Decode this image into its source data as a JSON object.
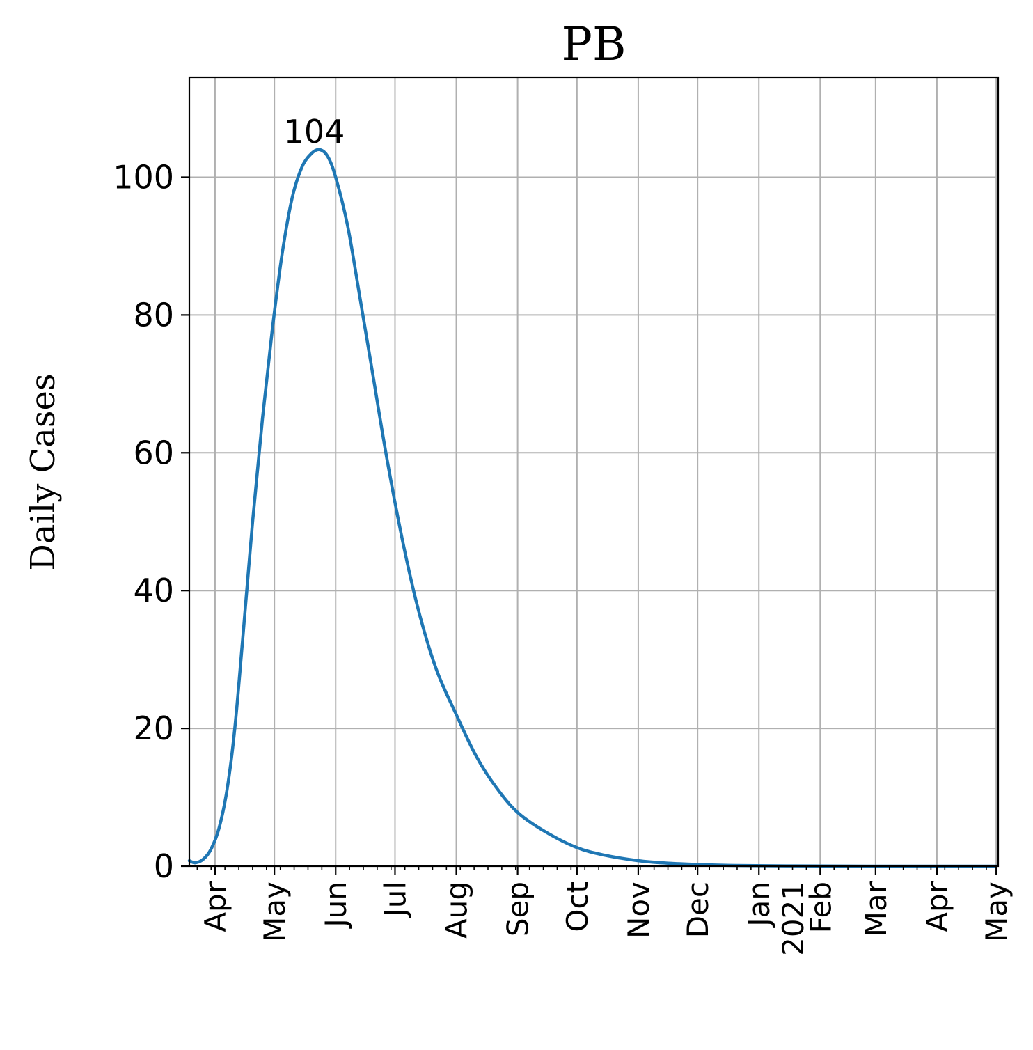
{
  "chart_data": {
    "type": "line",
    "title": "PB",
    "xlabel": "",
    "ylabel": "Daily Cases",
    "ylim": [
      0,
      114.5
    ],
    "xlim": [
      "2020-03-19",
      "2021-05-02"
    ],
    "grid": true,
    "x_ticks": [
      {
        "date": "2020-04-01",
        "label": "Apr"
      },
      {
        "date": "2020-05-01",
        "label": "May"
      },
      {
        "date": "2020-06-01",
        "label": "Jun"
      },
      {
        "date": "2020-07-01",
        "label": "Jul"
      },
      {
        "date": "2020-08-01",
        "label": "Aug"
      },
      {
        "date": "2020-09-01",
        "label": "Sep"
      },
      {
        "date": "2020-10-01",
        "label": "Oct"
      },
      {
        "date": "2020-11-01",
        "label": "Nov"
      },
      {
        "date": "2020-12-01",
        "label": "Dec"
      },
      {
        "date": "2021-01-01",
        "label": "Jan\n2021"
      },
      {
        "date": "2021-02-01",
        "label": "Feb"
      },
      {
        "date": "2021-03-01",
        "label": "Mar"
      },
      {
        "date": "2021-04-01",
        "label": "Apr"
      },
      {
        "date": "2021-05-01",
        "label": "May"
      }
    ],
    "y_ticks": [
      0,
      20,
      40,
      60,
      80,
      100
    ],
    "series": [
      {
        "color": "#1f77b4",
        "points": [
          {
            "x": "2020-03-19",
            "y": 0.8
          },
          {
            "x": "2020-03-22",
            "y": 0.5
          },
          {
            "x": "2020-03-26",
            "y": 1.0
          },
          {
            "x": "2020-03-30",
            "y": 2.5
          },
          {
            "x": "2020-04-03",
            "y": 5.5
          },
          {
            "x": "2020-04-07",
            "y": 11.0
          },
          {
            "x": "2020-04-11",
            "y": 20.0
          },
          {
            "x": "2020-04-15",
            "y": 33.0
          },
          {
            "x": "2020-04-20",
            "y": 50.0
          },
          {
            "x": "2020-04-25",
            "y": 65.0
          },
          {
            "x": "2020-04-30",
            "y": 78.0
          },
          {
            "x": "2020-05-05",
            "y": 89.0
          },
          {
            "x": "2020-05-10",
            "y": 97.0
          },
          {
            "x": "2020-05-15",
            "y": 101.5
          },
          {
            "x": "2020-05-20",
            "y": 103.5
          },
          {
            "x": "2020-05-24",
            "y": 104.0
          },
          {
            "x": "2020-05-28",
            "y": 103.0
          },
          {
            "x": "2020-06-01",
            "y": 100.0
          },
          {
            "x": "2020-06-07",
            "y": 93.0
          },
          {
            "x": "2020-06-13",
            "y": 83.0
          },
          {
            "x": "2020-06-20",
            "y": 71.0
          },
          {
            "x": "2020-06-27",
            "y": 59.0
          },
          {
            "x": "2020-07-05",
            "y": 47.0
          },
          {
            "x": "2020-07-13",
            "y": 37.0
          },
          {
            "x": "2020-07-22",
            "y": 28.5
          },
          {
            "x": "2020-08-01",
            "y": 22.0
          },
          {
            "x": "2020-08-11",
            "y": 16.0
          },
          {
            "x": "2020-08-21",
            "y": 11.5
          },
          {
            "x": "2020-09-01",
            "y": 7.8
          },
          {
            "x": "2020-09-15",
            "y": 5.0
          },
          {
            "x": "2020-10-01",
            "y": 2.7
          },
          {
            "x": "2020-10-15",
            "y": 1.6
          },
          {
            "x": "2020-11-01",
            "y": 0.8
          },
          {
            "x": "2020-11-15",
            "y": 0.45
          },
          {
            "x": "2020-12-01",
            "y": 0.25
          },
          {
            "x": "2020-12-20",
            "y": 0.1
          },
          {
            "x": "2021-01-15",
            "y": 0.04
          },
          {
            "x": "2021-02-15",
            "y": 0.01
          },
          {
            "x": "2021-03-15",
            "y": 0.005
          },
          {
            "x": "2021-05-01",
            "y": 0.0
          }
        ]
      }
    ],
    "annotations": [
      {
        "text": "104",
        "x": "2020-05-24",
        "y": 104
      }
    ]
  }
}
